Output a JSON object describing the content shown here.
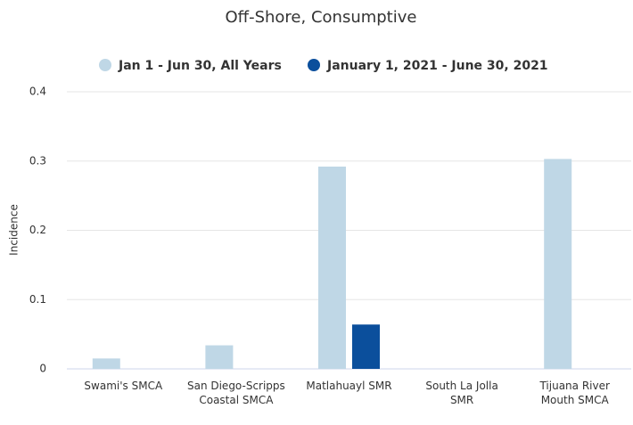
{
  "chart_data": {
    "type": "bar",
    "title": "Off-Shore, Consumptive",
    "y_label": "Incidence",
    "categories": [
      "Swami's SMCA",
      "San Diego-Scripps Coastal SMCA",
      "Matlahuayl SMR",
      "South La Jolla SMR",
      "Tijuana River Mouth SMCA"
    ],
    "series": [
      {
        "name": "Jan 1 - Jun 30, All Years",
        "color": "#bfd7e6",
        "values": [
          0.015,
          0.034,
          0.292,
          0,
          0.303
        ]
      },
      {
        "name": "January 1, 2021 - June 30, 2021",
        "color": "#0b4f9c",
        "values": [
          0,
          0,
          0.064,
          0,
          0
        ]
      }
    ],
    "ylim": [
      0,
      0.4
    ],
    "yticks": [
      0,
      0.1,
      0.2,
      0.3,
      0.4
    ],
    "grid": true,
    "legend": "top"
  }
}
